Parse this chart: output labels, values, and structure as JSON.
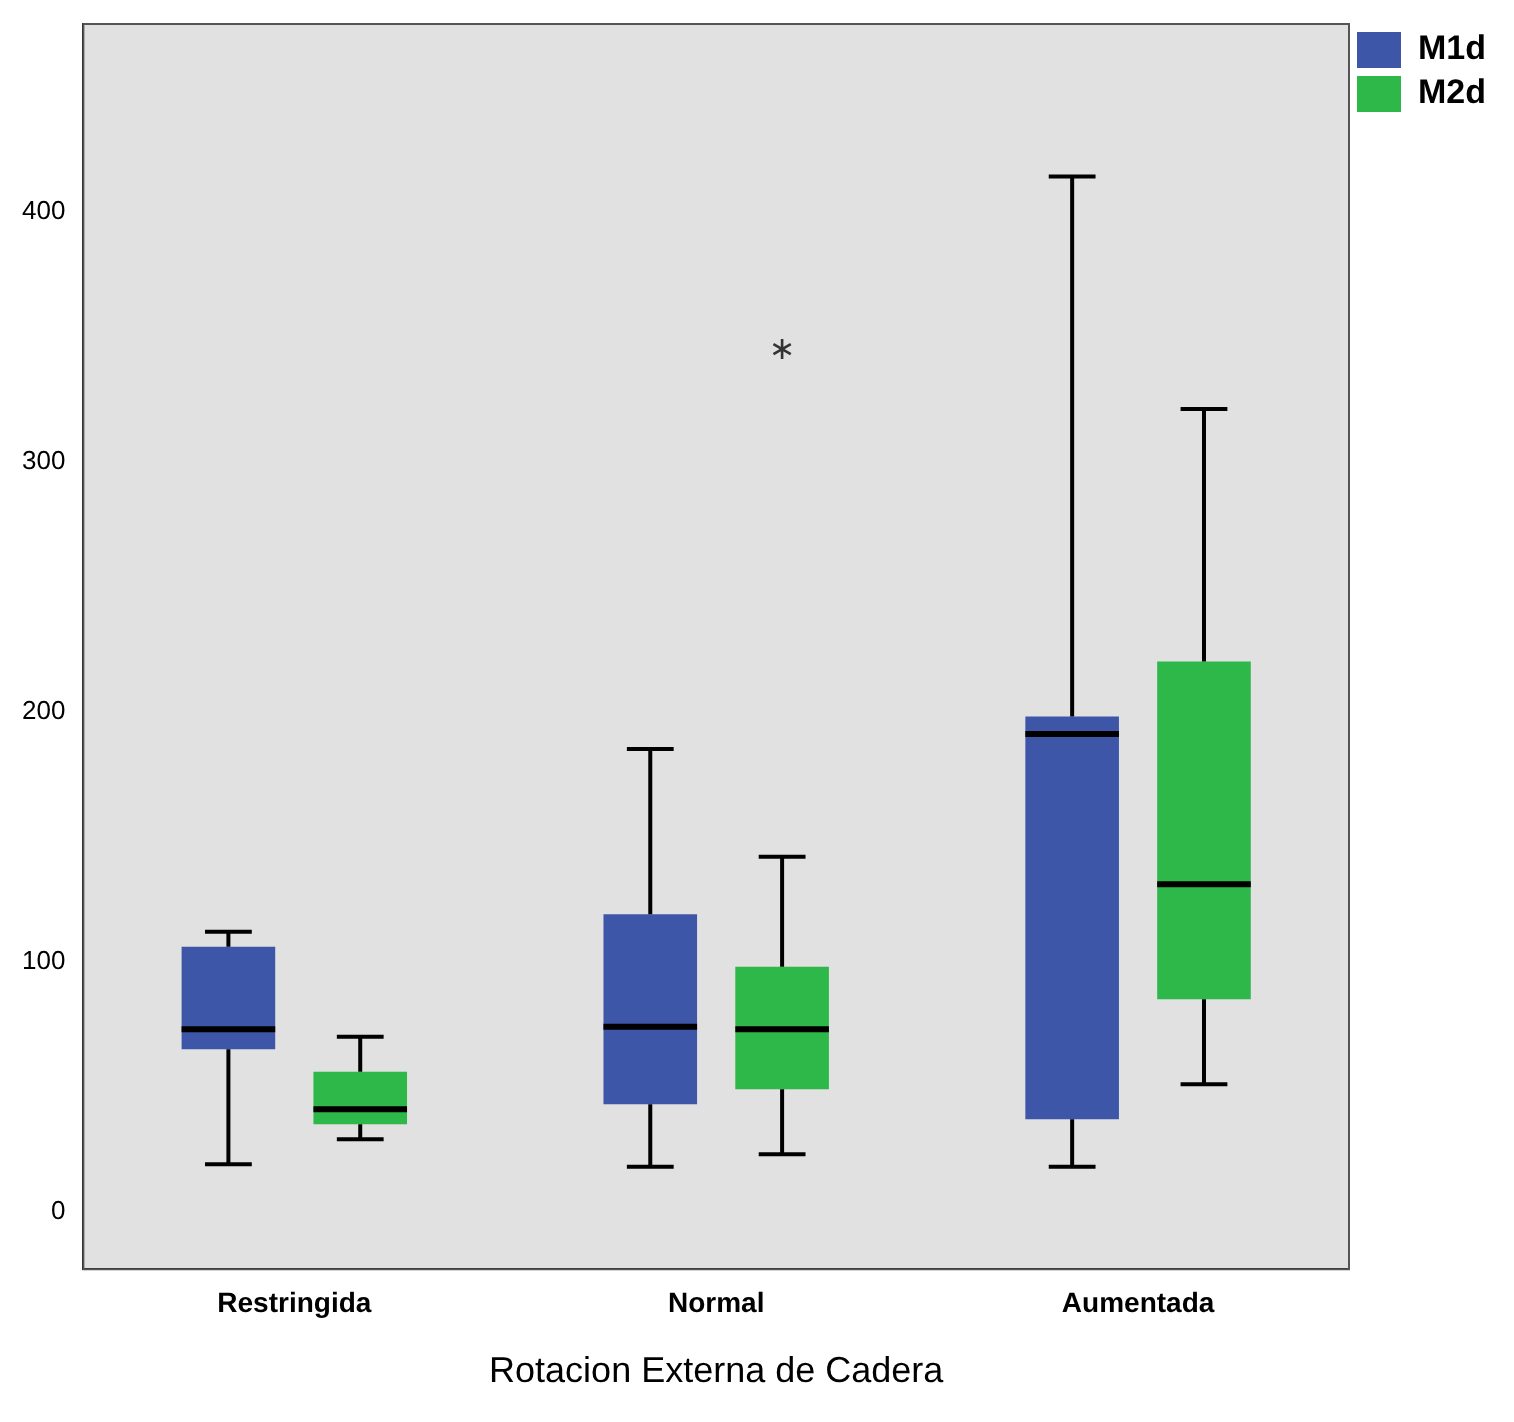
{
  "chart_data": {
    "type": "box",
    "xlabel": "Rotacion Externa de Cadera",
    "categories": [
      "Restringida",
      "Normal",
      "Aumentada"
    ],
    "ylim": [
      -23,
      475
    ],
    "yticks": [
      0,
      100,
      200,
      300,
      400
    ],
    "grid": false,
    "legend": "top right",
    "series": [
      {
        "name": "M1d",
        "color": "#3e56a8",
        "boxes": [
          {
            "low": 19,
            "q1": 65,
            "median": 73,
            "q3": 106,
            "high": 112
          },
          {
            "low": 18,
            "q1": 43,
            "median": 74,
            "q3": 119,
            "high": 185
          },
          {
            "low": 18,
            "q1": 37,
            "median": 191,
            "q3": 198,
            "high": 414
          }
        ]
      },
      {
        "name": "M2d",
        "color": "#2fb84a",
        "boxes": [
          {
            "low": 29,
            "q1": 35,
            "median": 41,
            "q3": 56,
            "high": 70
          },
          {
            "low": 23,
            "q1": 49,
            "median": 73,
            "q3": 98,
            "high": 142,
            "outliers": [
              345
            ]
          },
          {
            "low": 51,
            "q1": 85,
            "median": 131,
            "q3": 220,
            "high": 321
          }
        ]
      }
    ]
  }
}
